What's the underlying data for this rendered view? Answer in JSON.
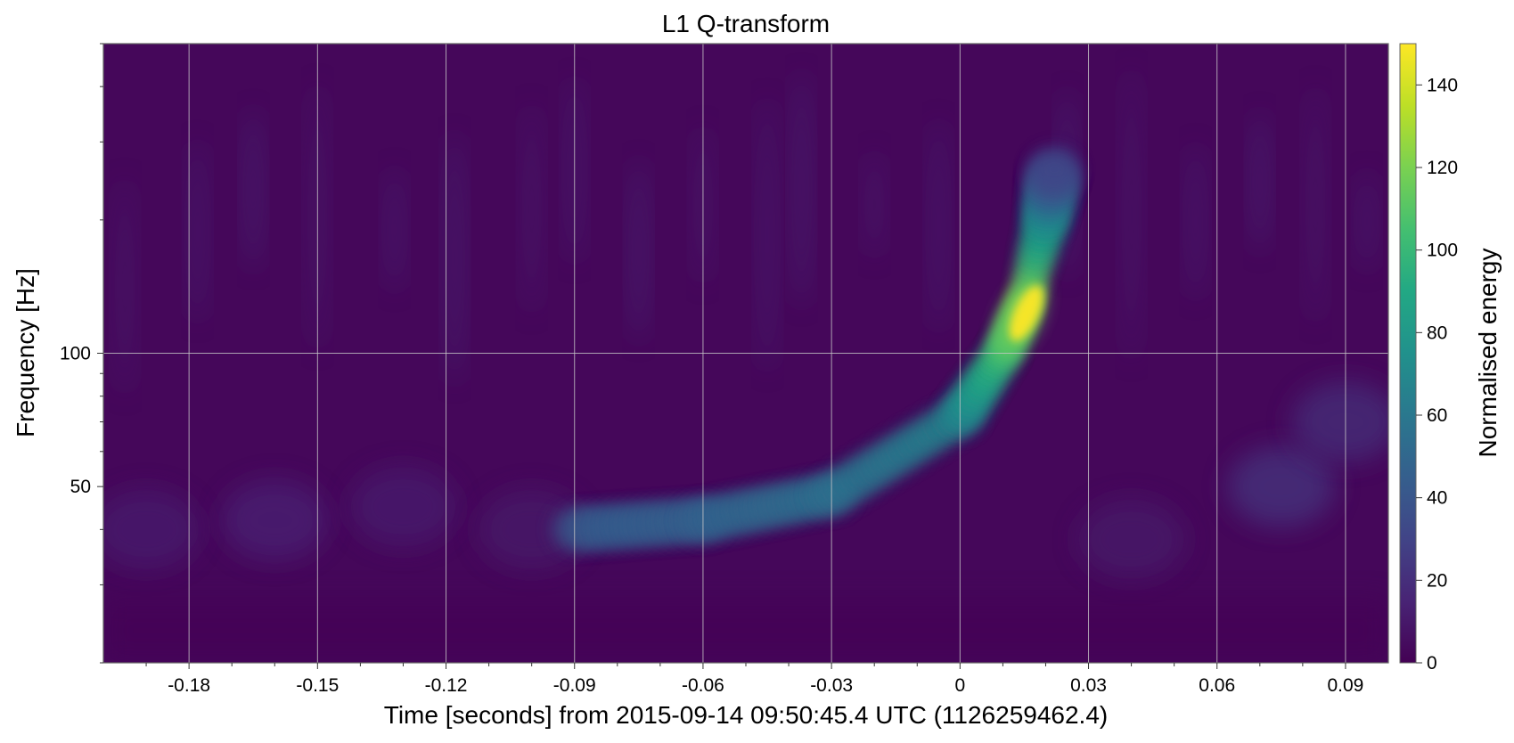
{
  "chart_data": {
    "type": "heatmap",
    "title": "L1 Q-transform",
    "xlabel": "Time [seconds] from 2015-09-14 09:50:45.4 UTC (1126259462.4)",
    "ylabel": "Frequency [Hz]",
    "colorbar_label": "Normalised energy",
    "x_range": [
      -0.2,
      0.1
    ],
    "y_range": [
      20,
      500
    ],
    "y_scale": "log",
    "grid": true,
    "colormap": "viridis",
    "color_range": [
      0,
      150
    ],
    "x_ticks": [
      -0.18,
      -0.15,
      -0.12,
      -0.09,
      -0.06,
      -0.03,
      0,
      0.03,
      0.06,
      0.09
    ],
    "x_tick_labels": [
      "-0.18",
      "-0.15",
      "-0.12",
      "-0.09",
      "-0.06",
      "-0.03",
      "0",
      "0.03",
      "0.06",
      "0.09"
    ],
    "y_ticks": [
      50,
      100
    ],
    "y_tick_labels": [
      "50",
      "100"
    ],
    "colorbar_ticks": [
      0,
      20,
      40,
      60,
      80,
      100,
      120,
      140
    ],
    "colorbar_tick_labels": [
      "0",
      "20",
      "40",
      "60",
      "80",
      "100",
      "120",
      "140"
    ],
    "chirp_track": [
      {
        "t": -0.09,
        "f": 40,
        "energy": 50
      },
      {
        "t": -0.06,
        "f": 42,
        "energy": 55
      },
      {
        "t": -0.03,
        "f": 48,
        "energy": 65
      },
      {
        "t": 0.0,
        "f": 72,
        "energy": 80
      },
      {
        "t": 0.01,
        "f": 100,
        "energy": 120
      },
      {
        "t": 0.015,
        "f": 130,
        "energy": 148
      },
      {
        "t": 0.02,
        "f": 200,
        "energy": 90
      },
      {
        "t": 0.022,
        "f": 260,
        "energy": 35
      }
    ],
    "peak": {
      "t": 0.014,
      "f": 120,
      "energy": 148
    }
  }
}
